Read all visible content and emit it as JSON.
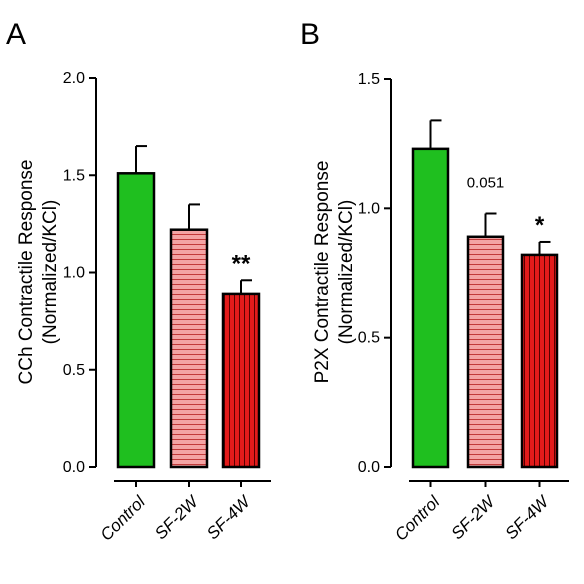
{
  "chart_data": [
    {
      "type": "bar",
      "panel_label": "A",
      "ylabel": "CCh Contractile Response (Normalized/KCl)",
      "ylabel_lines": [
        "CCh Contractile Response",
        "(Normalized/KCl)"
      ],
      "categories": [
        "Control",
        "SF-2W",
        "SF-4W"
      ],
      "values": [
        1.51,
        1.22,
        0.89
      ],
      "errors": [
        0.14,
        0.13,
        0.07
      ],
      "annotations": [
        "",
        "",
        "**"
      ],
      "ylim": [
        0,
        2.0
      ],
      "yticks": [
        "0.0",
        "0.5",
        "1.0",
        "1.5",
        "2.0"
      ],
      "fills": [
        "solid",
        "horizontal-stripes",
        "vertical-stripes"
      ]
    },
    {
      "type": "bar",
      "panel_label": "B",
      "ylabel": "P2X Contractile Response (Normalized/KCl)",
      "ylabel_lines": [
        "P2X Contractile Response",
        "(Normalized/KCl)"
      ],
      "categories": [
        "Control",
        "SF-2W",
        "SF-4W"
      ],
      "values": [
        1.23,
        0.89,
        0.82
      ],
      "errors": [
        0.11,
        0.09,
        0.05
      ],
      "annotations": [
        "",
        "0.051",
        "*"
      ],
      "ylim": [
        0,
        1.5
      ],
      "yticks": [
        "0.0",
        "0.5",
        "1.0",
        "1.5"
      ],
      "fills": [
        "solid",
        "horizontal-stripes",
        "vertical-stripes"
      ]
    }
  ],
  "colors": {
    "control": "#1fbf1f",
    "sf2w": "#f4a4a4",
    "sf4w": "#e31b1b",
    "stripe_sf2w": "#c23a3a",
    "stripe_sf4w": "#5a0000"
  }
}
